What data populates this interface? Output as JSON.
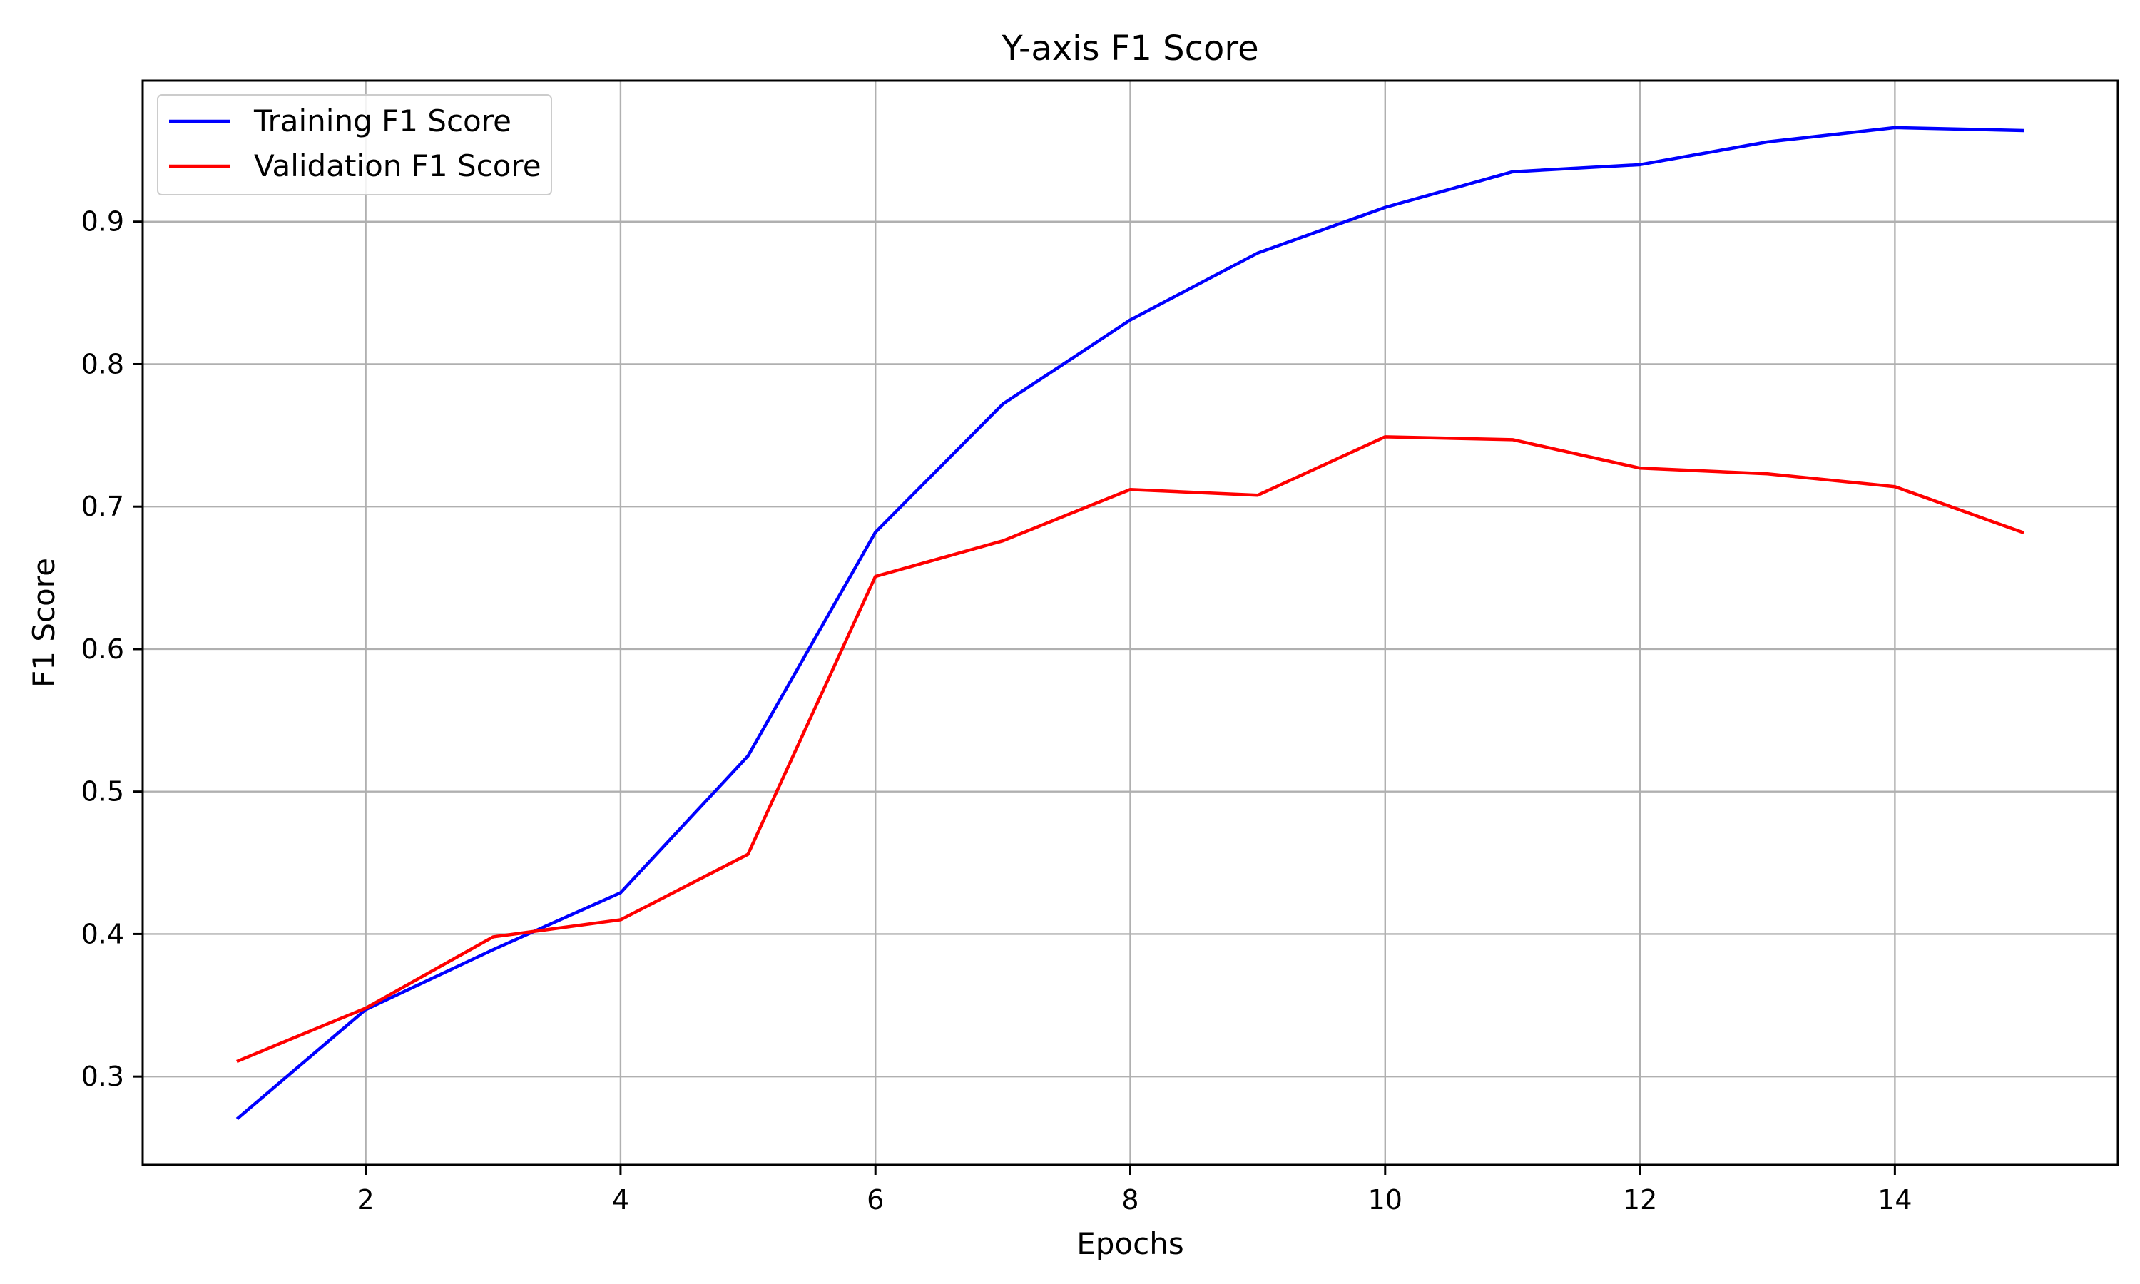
{
  "chart_data": {
    "type": "line",
    "title": "Y-axis F1 Score",
    "xlabel": "Epochs",
    "ylabel": "F1 Score",
    "x": [
      1,
      2,
      3,
      4,
      5,
      6,
      7,
      8,
      9,
      10,
      11,
      12,
      13,
      14,
      15
    ],
    "xlim": [
      0.25,
      15.75
    ],
    "ylim": [
      0.238,
      0.999
    ],
    "xticks": [
      2,
      4,
      6,
      8,
      10,
      12,
      14
    ],
    "yticks": [
      0.3,
      0.4,
      0.5,
      0.6,
      0.7,
      0.8,
      0.9
    ],
    "xtick_labels": [
      "2",
      "4",
      "6",
      "8",
      "10",
      "12",
      "14"
    ],
    "ytick_labels": [
      "0.3",
      "0.4",
      "0.5",
      "0.6",
      "0.7",
      "0.8",
      "0.9"
    ],
    "grid": true,
    "legend_position": "top-left",
    "series": [
      {
        "name": "Training F1 Score",
        "color": "#0000ff",
        "values": [
          0.271,
          0.347,
          0.389,
          0.429,
          0.525,
          0.682,
          0.772,
          0.831,
          0.878,
          0.91,
          0.935,
          0.94,
          0.956,
          0.966,
          0.964
        ]
      },
      {
        "name": "Validation F1 Score",
        "color": "#ff0000",
        "values": [
          0.311,
          0.348,
          0.398,
          0.41,
          0.456,
          0.651,
          0.676,
          0.712,
          0.708,
          0.749,
          0.747,
          0.727,
          0.723,
          0.714,
          0.682
        ]
      }
    ]
  }
}
